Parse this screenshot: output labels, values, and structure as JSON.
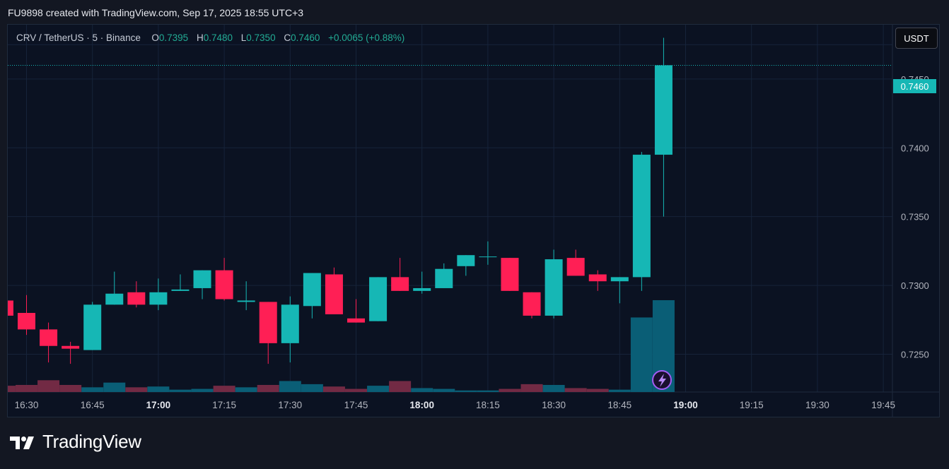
{
  "header": {
    "credit": "FU9898 created with TradingView.com, Sep 17, 2025 18:55 UTC+3"
  },
  "legend": {
    "symbol": "CRV / TetherUS · 5 · Binance",
    "open_label": "O",
    "open": "0.7395",
    "high_label": "H",
    "high": "0.7480",
    "low_label": "L",
    "low": "0.7350",
    "close_label": "C",
    "close": "0.7460",
    "change": "+0.0065 (+0.88%)"
  },
  "currency_button": "USDT",
  "last_price_label": "0.7460",
  "footer": {
    "brand": "TradingView"
  },
  "colors": {
    "up": "#16b7b5",
    "down": "#ff1f55",
    "vol_up": "#0a5e76",
    "vol_down": "#722a44",
    "grid": "#16233a"
  },
  "icons": {
    "lightning": "lightning-icon",
    "logo": "tradingview-logo-icon"
  },
  "chart_data": {
    "type": "candlestick",
    "interval_minutes": 5,
    "x_ticks": [
      "16:30",
      "16:45",
      "17:00",
      "17:15",
      "17:30",
      "17:45",
      "18:00",
      "18:15",
      "18:30",
      "18:45",
      "19:00",
      "19:15",
      "19:30",
      "19:45"
    ],
    "x_ticks_bold": [
      "17:00",
      "18:00",
      "19:00"
    ],
    "y_ticks": [
      "0.7450",
      "0.7400",
      "0.7350",
      "0.7300",
      "0.7250"
    ],
    "y_range": [
      0.72225,
      0.74895
    ],
    "last_price": 0.746,
    "candles": [
      {
        "t": "16:25",
        "o": 0.7289,
        "h": 0.7292,
        "l": 0.7278,
        "c": 0.7278,
        "v": 8
      },
      {
        "t": "16:30",
        "o": 0.728,
        "h": 0.7293,
        "l": 0.7264,
        "c": 0.7268,
        "v": 9
      },
      {
        "t": "16:35",
        "o": 0.7268,
        "h": 0.7273,
        "l": 0.7244,
        "c": 0.7256,
        "v": 15
      },
      {
        "t": "16:40",
        "o": 0.7256,
        "h": 0.7259,
        "l": 0.7243,
        "c": 0.7254,
        "v": 9
      },
      {
        "t": "16:45",
        "o": 0.7253,
        "h": 0.7288,
        "l": 0.7253,
        "c": 0.7286,
        "v": 6
      },
      {
        "t": "16:50",
        "o": 0.7286,
        "h": 0.731,
        "l": 0.7286,
        "c": 0.7294,
        "v": 12
      },
      {
        "t": "16:55",
        "o": 0.7295,
        "h": 0.7303,
        "l": 0.7284,
        "c": 0.7286,
        "v": 6
      },
      {
        "t": "17:00",
        "o": 0.7286,
        "h": 0.7305,
        "l": 0.7282,
        "c": 0.7295,
        "v": 7
      },
      {
        "t": "17:05",
        "o": 0.7296,
        "h": 0.7308,
        "l": 0.7296,
        "c": 0.7297,
        "v": 3
      },
      {
        "t": "17:10",
        "o": 0.7298,
        "h": 0.7311,
        "l": 0.729,
        "c": 0.7311,
        "v": 4
      },
      {
        "t": "17:15",
        "o": 0.7311,
        "h": 0.732,
        "l": 0.7289,
        "c": 0.729,
        "v": 8
      },
      {
        "t": "17:20",
        "o": 0.7288,
        "h": 0.7303,
        "l": 0.7282,
        "c": 0.7289,
        "v": 6
      },
      {
        "t": "17:25",
        "o": 0.7288,
        "h": 0.7288,
        "l": 0.7243,
        "c": 0.7258,
        "v": 9
      },
      {
        "t": "17:30",
        "o": 0.7258,
        "h": 0.7292,
        "l": 0.7244,
        "c": 0.7286,
        "v": 14
      },
      {
        "t": "17:35",
        "o": 0.7285,
        "h": 0.7309,
        "l": 0.7276,
        "c": 0.7309,
        "v": 10
      },
      {
        "t": "17:40",
        "o": 0.7308,
        "h": 0.7313,
        "l": 0.7279,
        "c": 0.7279,
        "v": 7
      },
      {
        "t": "17:45",
        "o": 0.7276,
        "h": 0.729,
        "l": 0.7273,
        "c": 0.7273,
        "v": 4
      },
      {
        "t": "17:50",
        "o": 0.7274,
        "h": 0.7306,
        "l": 0.7274,
        "c": 0.7306,
        "v": 8
      },
      {
        "t": "17:55",
        "o": 0.7306,
        "h": 0.732,
        "l": 0.7296,
        "c": 0.7296,
        "v": 14
      },
      {
        "t": "18:00",
        "o": 0.7296,
        "h": 0.731,
        "l": 0.7294,
        "c": 0.7298,
        "v": 5
      },
      {
        "t": "18:05",
        "o": 0.7298,
        "h": 0.7316,
        "l": 0.7298,
        "c": 0.7312,
        "v": 4
      },
      {
        "t": "18:10",
        "o": 0.7314,
        "h": 0.7322,
        "l": 0.7307,
        "c": 0.7322,
        "v": 2
      },
      {
        "t": "18:15",
        "o": 0.7321,
        "h": 0.7332,
        "l": 0.7315,
        "c": 0.7321,
        "v": 2
      },
      {
        "t": "18:20",
        "o": 0.732,
        "h": 0.732,
        "l": 0.7296,
        "c": 0.7296,
        "v": 4
      },
      {
        "t": "18:25",
        "o": 0.7295,
        "h": 0.7295,
        "l": 0.7276,
        "c": 0.7278,
        "v": 10
      },
      {
        "t": "18:30",
        "o": 0.7278,
        "h": 0.7326,
        "l": 0.7276,
        "c": 0.7319,
        "v": 9
      },
      {
        "t": "18:35",
        "o": 0.732,
        "h": 0.7326,
        "l": 0.7307,
        "c": 0.7307,
        "v": 5
      },
      {
        "t": "18:40",
        "o": 0.7308,
        "h": 0.7311,
        "l": 0.7296,
        "c": 0.7303,
        "v": 4
      },
      {
        "t": "18:45",
        "o": 0.7303,
        "h": 0.7306,
        "l": 0.7287,
        "c": 0.7306,
        "v": 3
      },
      {
        "t": "18:50",
        "o": 0.7306,
        "h": 0.7397,
        "l": 0.7296,
        "c": 0.7395,
        "v": 95
      },
      {
        "t": "18:55",
        "o": 0.7395,
        "h": 0.748,
        "l": 0.735,
        "c": 0.746,
        "v": 117
      }
    ]
  }
}
